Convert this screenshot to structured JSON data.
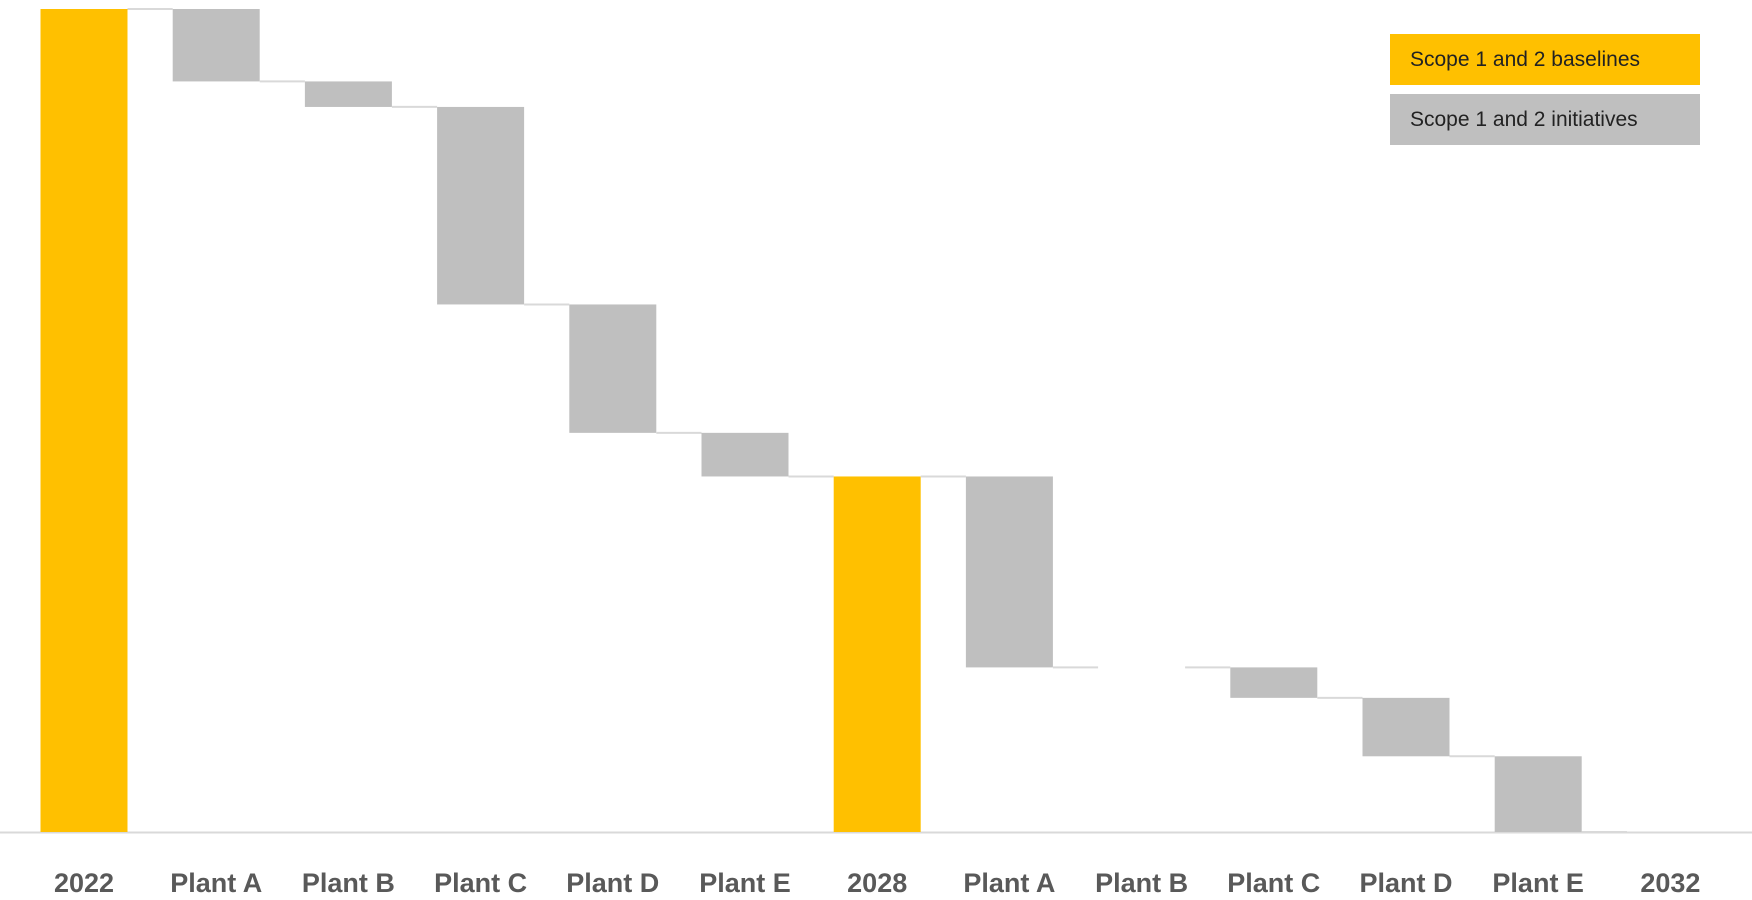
{
  "chart_data": {
    "type": "waterfall",
    "categories": [
      "2022",
      "Plant A",
      "Plant B",
      "Plant C",
      "Plant D",
      "Plant E",
      "2028",
      "Plant A",
      "Plant B",
      "Plant C",
      "Plant D",
      "Plant E",
      "2032"
    ],
    "series": [
      {
        "name": "Scope 1 and 2 baselines",
        "color": "#ffc000",
        "values": [
          100,
          null,
          null,
          null,
          null,
          null,
          43.2,
          null,
          null,
          null,
          null,
          null,
          0
        ]
      },
      {
        "name": "Scope 1 and 2 initiatives",
        "color": "#bfbfbf",
        "values": [
          null,
          -8.8,
          -3.1,
          -24,
          -15.6,
          -5.3,
          null,
          -23.2,
          0,
          -3.7,
          -7.1,
          -9.2,
          null
        ]
      }
    ],
    "legend": "upper right"
  }
}
